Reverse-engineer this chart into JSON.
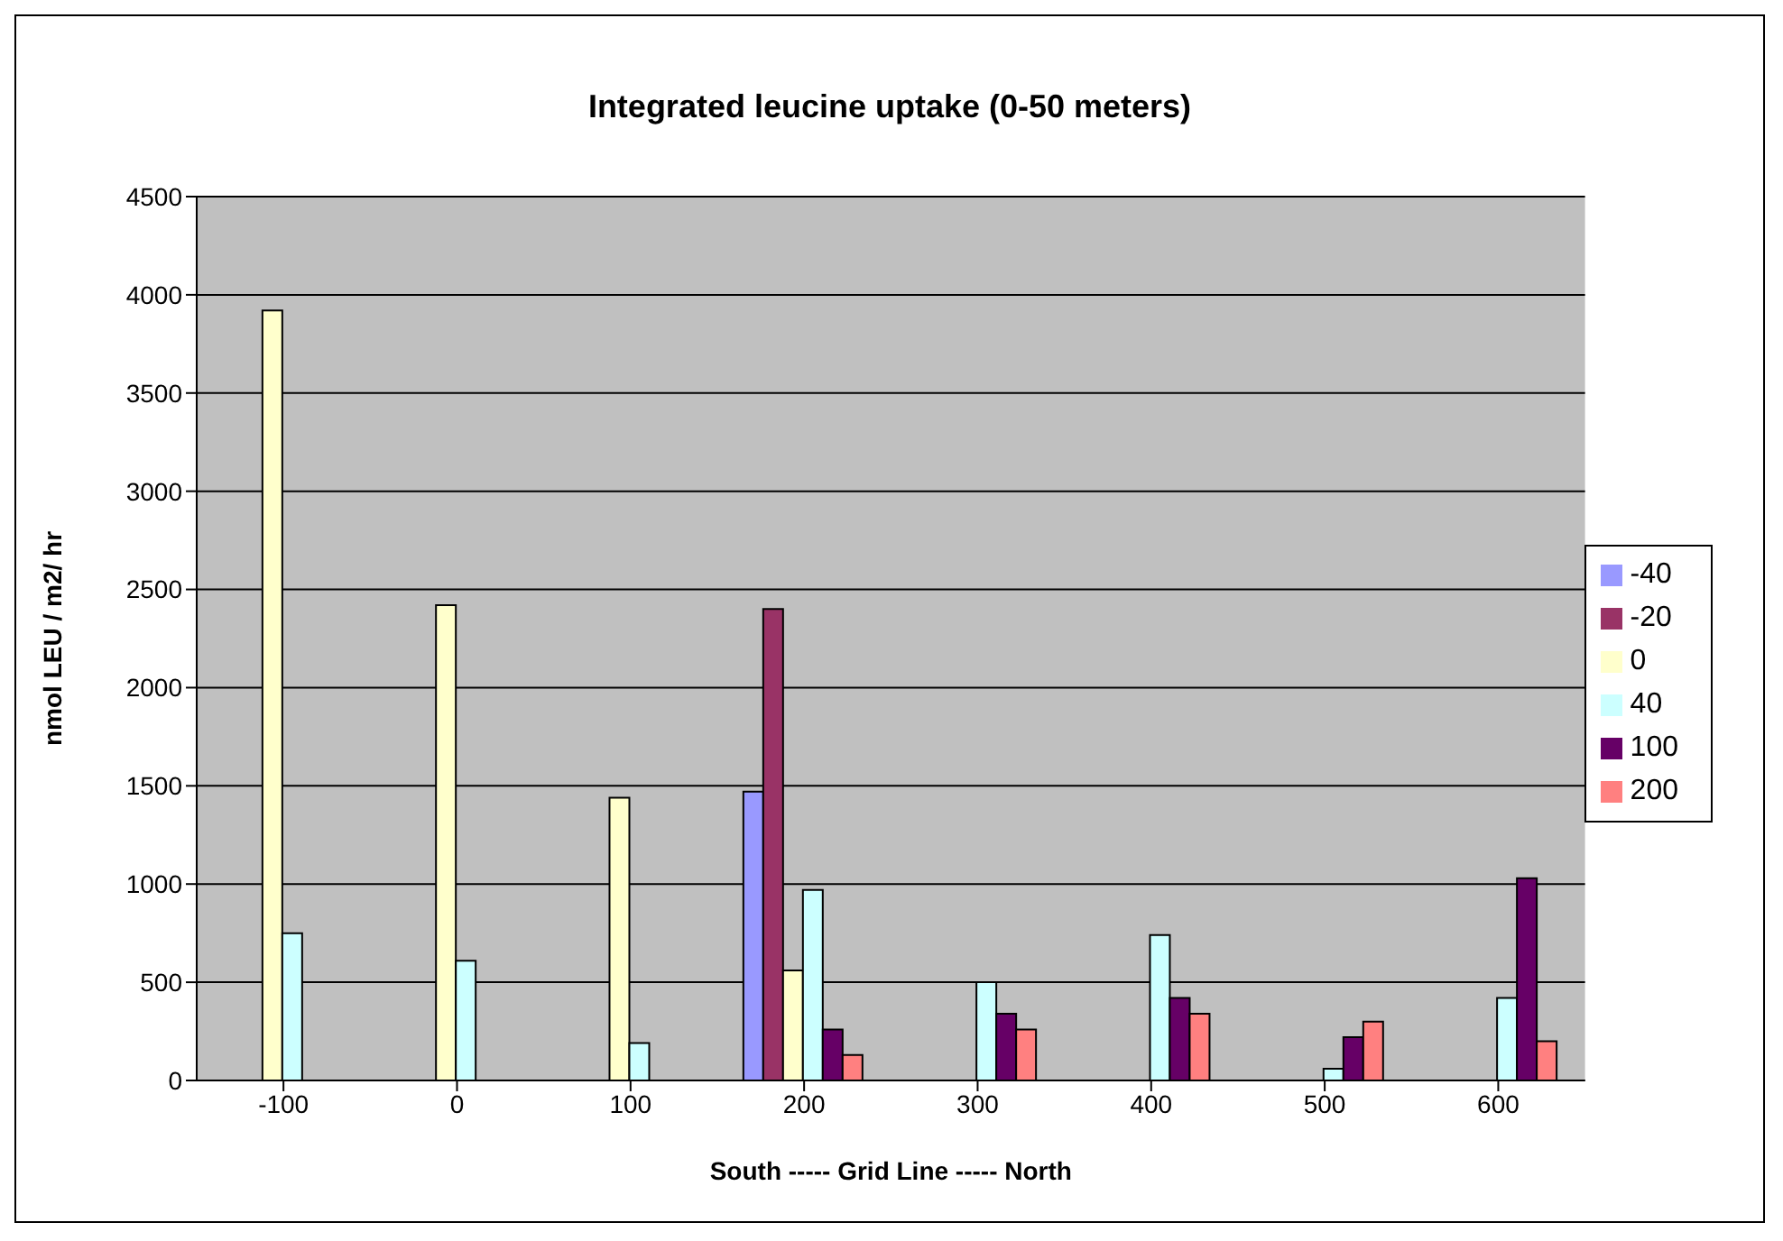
{
  "chart_data": {
    "type": "bar",
    "title": "Integrated leucine uptake (0-50 meters)",
    "xlabel": "South ----- Grid Line ----- North",
    "ylabel": "nmol LEU / m2/ hr",
    "categories": [
      "-100",
      "0",
      "100",
      "200",
      "300",
      "400",
      "500",
      "600"
    ],
    "series": [
      {
        "name": "-40",
        "color": "#9999ff",
        "values": [
          null,
          null,
          null,
          1470,
          null,
          null,
          null,
          null
        ]
      },
      {
        "name": "-20",
        "color": "#993366",
        "values": [
          null,
          null,
          null,
          2400,
          null,
          null,
          null,
          null
        ]
      },
      {
        "name": "0",
        "color": "#ffffcc",
        "values": [
          3920,
          2420,
          1440,
          560,
          null,
          null,
          null,
          null
        ]
      },
      {
        "name": "40",
        "color": "#ccffff",
        "values": [
          750,
          610,
          190,
          970,
          500,
          740,
          60,
          420
        ]
      },
      {
        "name": "100",
        "color": "#660066",
        "values": [
          null,
          null,
          null,
          260,
          340,
          420,
          220,
          1030
        ]
      },
      {
        "name": "200",
        "color": "#ff8080",
        "values": [
          null,
          null,
          null,
          130,
          260,
          340,
          300,
          200
        ]
      }
    ],
    "ylim": [
      0,
      4500
    ],
    "yticks": [
      0,
      500,
      1000,
      1500,
      2000,
      2500,
      3000,
      3500,
      4000,
      4500
    ],
    "grid": "y",
    "legend": "right"
  }
}
